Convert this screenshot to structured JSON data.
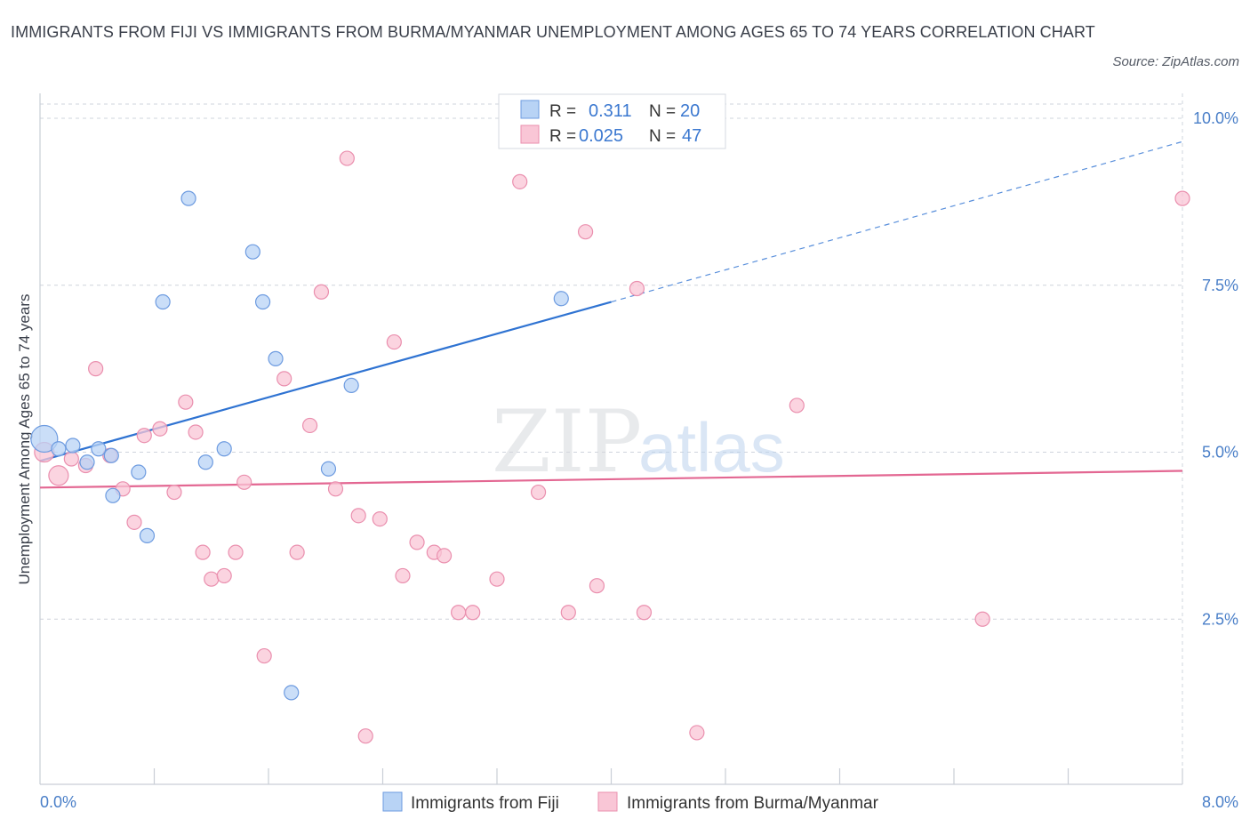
{
  "header": {
    "title": "IMMIGRANTS FROM FIJI VS IMMIGRANTS FROM BURMA/MYANMAR UNEMPLOYMENT AMONG AGES 65 TO 74 YEARS CORRELATION CHART",
    "source": "Source: ZipAtlas.com"
  },
  "watermark": {
    "zip": "ZIP",
    "atlas": "atlas"
  },
  "legend_box": {
    "r_label": "R =",
    "n_label": "N =",
    "rows": [
      {
        "r": "0.311",
        "n": "20"
      },
      {
        "r": "0.025",
        "n": "47"
      }
    ]
  },
  "colors": {
    "fiji_fill": "#b8d3f5",
    "fiji_stroke": "#6d9be0",
    "fiji_line": "#2f73d2",
    "burma_fill": "#f9c6d6",
    "burma_stroke": "#ea8fae",
    "burma_line": "#e36792",
    "grid": "#cfd4dc",
    "axis_tick_text": "#4a7fc8"
  },
  "chart_data": {
    "type": "scatter",
    "title": "IMMIGRANTS FROM FIJI VS IMMIGRANTS FROM BURMA/MYANMAR UNEMPLOYMENT AMONG AGES 65 TO 74 YEARS CORRELATION CHART",
    "xlabel": "",
    "ylabel": "Unemployment Among Ages 65 to 74 years",
    "xlim": [
      0,
      8
    ],
    "ylim": [
      0,
      10
    ],
    "x_tick_labels": [
      "0.0%",
      "8.0%"
    ],
    "y_ticks": [
      2.5,
      5.0,
      7.5,
      10.0
    ],
    "y_tick_labels": [
      "2.5%",
      "5.0%",
      "7.5%",
      "10.0%"
    ],
    "grid": true,
    "legend_position": "bottom",
    "series": [
      {
        "name": "Immigrants from Fiji",
        "r": 0.311,
        "n": 20,
        "points": [
          [
            0.03,
            5.2
          ],
          [
            0.13,
            5.05
          ],
          [
            0.23,
            5.1
          ],
          [
            0.33,
            4.85
          ],
          [
            0.41,
            5.05
          ],
          [
            0.5,
            4.95
          ],
          [
            0.51,
            4.35
          ],
          [
            0.69,
            4.7
          ],
          [
            0.75,
            3.75
          ],
          [
            0.86,
            7.25
          ],
          [
            1.04,
            8.8
          ],
          [
            1.16,
            4.85
          ],
          [
            1.29,
            5.05
          ],
          [
            1.49,
            8.0
          ],
          [
            1.56,
            7.25
          ],
          [
            1.65,
            6.4
          ],
          [
            1.76,
            1.4
          ],
          [
            2.02,
            4.75
          ],
          [
            2.18,
            6.0
          ],
          [
            3.65,
            7.3
          ]
        ],
        "trend": {
          "x0": 0.0,
          "y0": 4.87,
          "x1": 4.0,
          "y1": 7.25,
          "dash_x1": 8.0,
          "dash_y1": 9.65
        }
      },
      {
        "name": "Immigrants from Burma/Myanmar",
        "r": 0.025,
        "n": 47,
        "points": [
          [
            0.03,
            5.0
          ],
          [
            0.13,
            4.65
          ],
          [
            0.22,
            4.9
          ],
          [
            0.32,
            4.8
          ],
          [
            0.39,
            6.25
          ],
          [
            0.49,
            4.95
          ],
          [
            0.58,
            4.45
          ],
          [
            0.66,
            3.95
          ],
          [
            0.73,
            5.25
          ],
          [
            0.84,
            5.35
          ],
          [
            0.94,
            4.4
          ],
          [
            1.02,
            5.75
          ],
          [
            1.09,
            5.3
          ],
          [
            1.14,
            3.5
          ],
          [
            1.2,
            3.1
          ],
          [
            1.29,
            3.15
          ],
          [
            1.37,
            3.5
          ],
          [
            1.43,
            4.55
          ],
          [
            1.57,
            1.95
          ],
          [
            1.71,
            6.1
          ],
          [
            1.8,
            3.5
          ],
          [
            1.89,
            5.4
          ],
          [
            1.97,
            7.4
          ],
          [
            2.07,
            4.45
          ],
          [
            2.15,
            9.4
          ],
          [
            2.23,
            4.05
          ],
          [
            2.28,
            0.75
          ],
          [
            2.38,
            4.0
          ],
          [
            2.48,
            6.65
          ],
          [
            2.54,
            3.15
          ],
          [
            2.64,
            3.65
          ],
          [
            2.76,
            3.5
          ],
          [
            2.83,
            3.45
          ],
          [
            2.93,
            2.6
          ],
          [
            3.03,
            2.6
          ],
          [
            3.2,
            3.1
          ],
          [
            3.36,
            9.05
          ],
          [
            3.49,
            4.4
          ],
          [
            3.7,
            2.6
          ],
          [
            3.82,
            8.3
          ],
          [
            3.9,
            3.0
          ],
          [
            4.18,
            7.45
          ],
          [
            4.23,
            2.6
          ],
          [
            4.6,
            0.8
          ],
          [
            5.3,
            5.7
          ],
          [
            6.6,
            2.5
          ],
          [
            8.0,
            8.8
          ]
        ],
        "trend": {
          "x0": 0.0,
          "y0": 4.47,
          "x1": 8.0,
          "y1": 4.72
        }
      }
    ]
  }
}
